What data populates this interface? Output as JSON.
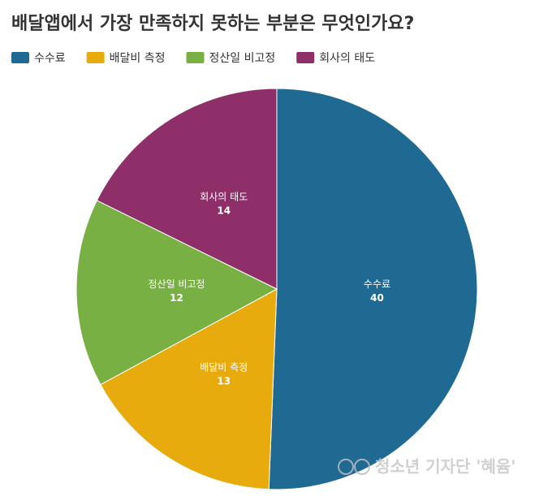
{
  "chart_data": {
    "type": "pie",
    "title": "배달앱에서 가장 만족하지 못하는 부분은 무엇인가요?",
    "categories": [
      "수수료",
      "배달비 측정",
      "정산일 비고정",
      "회사의 태도"
    ],
    "values": [
      40,
      13,
      12,
      14
    ],
    "colors": [
      "#1f6a93",
      "#e8ab0d",
      "#78b043",
      "#8e2f6a"
    ],
    "watermark": "청소년 기자단 '혜윰'"
  }
}
